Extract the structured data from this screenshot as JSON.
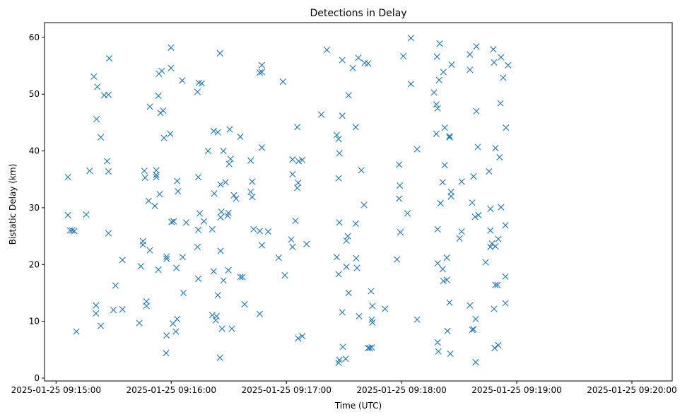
{
  "chart_data": {
    "type": "scatter",
    "title": "Detections in Delay",
    "xlabel": "Time (UTC)",
    "ylabel": "Bistatic Delay (km)",
    "marker": "x",
    "color": "#1f77b4",
    "grid": false,
    "legend": null,
    "xlim": [
      "2025-01-25 09:14:54",
      "2025-01-25 09:20:21"
    ],
    "ylim": [
      -0.5,
      62.6
    ],
    "x_ticks": [
      "2025-01-25 09:15:00",
      "2025-01-25 09:16:00",
      "2025-01-25 09:17:00",
      "2025-01-25 09:18:00",
      "2025-01-25 09:19:00",
      "2025-01-25 09:20:00"
    ],
    "y_ticks": [
      0,
      10,
      20,
      30,
      40,
      50,
      60
    ],
    "points": [
      [
        "2025-01-25 09:15:06.2",
        35.4
      ],
      [
        "2025-01-25 09:15:06.2",
        28.7
      ],
      [
        "2025-01-25 09:15:07.3",
        26.0
      ],
      [
        "2025-01-25 09:15:08.4",
        26.0
      ],
      [
        "2025-01-25 09:15:09.5",
        25.9
      ],
      [
        "2025-01-25 09:15:10.6",
        8.2
      ],
      [
        "2025-01-25 09:15:15.7",
        28.8
      ],
      [
        "2025-01-25 09:15:17.5",
        36.5
      ],
      [
        "2025-01-25 09:15:19.7",
        53.1
      ],
      [
        "2025-01-25 09:15:21.1",
        45.6
      ],
      [
        "2025-01-25 09:15:21.5",
        51.3
      ],
      [
        "2025-01-25 09:15:20.8",
        12.8
      ],
      [
        "2025-01-25 09:15:20.8",
        11.4
      ],
      [
        "2025-01-25 09:15:23.3",
        42.4
      ],
      [
        "2025-01-25 09:15:23.3",
        9.2
      ],
      [
        "2025-01-25 09:15:25.1",
        49.8
      ],
      [
        "2025-01-25 09:15:27.3",
        49.9
      ],
      [
        "2025-01-25 09:15:27.7",
        56.3
      ],
      [
        "2025-01-25 09:15:26.6",
        38.2
      ],
      [
        "2025-01-25 09:15:27.3",
        36.4
      ],
      [
        "2025-01-25 09:15:27.3",
        25.5
      ],
      [
        "2025-01-25 09:15:29.9",
        12.0
      ],
      [
        "2025-01-25 09:15:31.0",
        16.3
      ],
      [
        "2025-01-25 09:15:34.6",
        20.8
      ],
      [
        "2025-01-25 09:15:34.6",
        12.1
      ],
      [
        "2025-01-25 09:15:43.4",
        9.7
      ],
      [
        "2025-01-25 09:15:44.2",
        19.7
      ],
      [
        "2025-01-25 09:15:45.3",
        24.1
      ],
      [
        "2025-01-25 09:15:45.3",
        23.5
      ],
      [
        "2025-01-25 09:15:46.0",
        36.5
      ],
      [
        "2025-01-25 09:15:46.4",
        35.3
      ],
      [
        "2025-01-25 09:15:47.1",
        13.5
      ],
      [
        "2025-01-25 09:15:47.1",
        12.7
      ],
      [
        "2025-01-25 09:15:48.2",
        31.2
      ],
      [
        "2025-01-25 09:15:48.9",
        22.5
      ],
      [
        "2025-01-25 09:15:48.9",
        47.8
      ],
      [
        "2025-01-25 09:15:51.5",
        30.3
      ],
      [
        "2025-01-25 09:15:52.2",
        36.6
      ],
      [
        "2025-01-25 09:15:52.2",
        35.8
      ],
      [
        "2025-01-25 09:15:52.2",
        35.4
      ],
      [
        "2025-01-25 09:15:53.3",
        49.7
      ],
      [
        "2025-01-25 09:15:53.3",
        19.1
      ],
      [
        "2025-01-25 09:15:53.6",
        53.6
      ],
      [
        "2025-01-25 09:15:54.0",
        32.4
      ],
      [
        "2025-01-25 09:15:54.4",
        46.7
      ],
      [
        "2025-01-25 09:15:55.1",
        54.1
      ],
      [
        "2025-01-25 09:15:55.8",
        47.1
      ],
      [
        "2025-01-25 09:15:56.2",
        42.3
      ],
      [
        "2025-01-25 09:15:57.6",
        21.4
      ],
      [
        "2025-01-25 09:15:57.6",
        21.0
      ],
      [
        "2025-01-25 09:15:57.6",
        7.5
      ],
      [
        "2025-01-25 09:15:57.3",
        4.4
      ],
      [
        "2025-01-25 09:15:59.5",
        43.0
      ],
      [
        "2025-01-25 09:15:59.9",
        58.2
      ],
      [
        "2025-01-25 09:15:59.9",
        54.6
      ],
      [
        "2025-01-25 09:16:00.2",
        27.5
      ],
      [
        "2025-01-25 09:16:01.3",
        27.6
      ],
      [
        "2025-01-25 09:16:00.9",
        9.6
      ],
      [
        "2025-01-25 09:16:02.7",
        19.4
      ],
      [
        "2025-01-25 09:16:02.4",
        8.2
      ],
      [
        "2025-01-25 09:16:03.1",
        10.4
      ],
      [
        "2025-01-25 09:16:03.1",
        34.7
      ],
      [
        "2025-01-25 09:16:03.5",
        32.9
      ],
      [
        "2025-01-25 09:16:05.7",
        52.4
      ],
      [
        "2025-01-25 09:16:06.0",
        21.3
      ],
      [
        "2025-01-25 09:16:06.4",
        15.0
      ],
      [
        "2025-01-25 09:16:07.8",
        27.4
      ],
      [
        "2025-01-25 09:16:13.7",
        50.4
      ],
      [
        "2025-01-25 09:16:14.1",
        35.4
      ],
      [
        "2025-01-25 09:16:14.1",
        26.1
      ],
      [
        "2025-01-25 09:16:13.7",
        23.1
      ],
      [
        "2025-01-25 09:16:14.1",
        17.5
      ],
      [
        "2025-01-25 09:16:14.4",
        52.0
      ],
      [
        "2025-01-25 09:16:14.8",
        29.0
      ],
      [
        "2025-01-25 09:16:15.9",
        51.9
      ],
      [
        "2025-01-25 09:16:17.0",
        27.6
      ],
      [
        "2025-01-25 09:16:19.2",
        40.0
      ],
      [
        "2025-01-25 09:16:21.4",
        26.2
      ],
      [
        "2025-01-25 09:16:21.4",
        11.1
      ],
      [
        "2025-01-25 09:16:22.1",
        43.5
      ],
      [
        "2025-01-25 09:16:22.1",
        18.8
      ],
      [
        "2025-01-25 09:16:22.4",
        32.5
      ],
      [
        "2025-01-25 09:16:23.2",
        10.2
      ],
      [
        "2025-01-25 09:16:23.6",
        10.9
      ],
      [
        "2025-01-25 09:16:24.3",
        43.3
      ],
      [
        "2025-01-25 09:16:24.3",
        14.6
      ],
      [
        "2025-01-25 09:16:25.4",
        57.2
      ],
      [
        "2025-01-25 09:16:25.4",
        3.6
      ],
      [
        "2025-01-25 09:16:25.7",
        28.3
      ],
      [
        "2025-01-25 09:16:26.1",
        29.3
      ],
      [
        "2025-01-25 09:16:25.7",
        22.4
      ],
      [
        "2025-01-25 09:16:25.7",
        34.1
      ],
      [
        "2025-01-25 09:16:26.5",
        8.7
      ],
      [
        "2025-01-25 09:16:27.2",
        17.2
      ],
      [
        "2025-01-25 09:16:27.2",
        40.0
      ],
      [
        "2025-01-25 09:16:28.3",
        34.5
      ],
      [
        "2025-01-25 09:16:29.4",
        28.6
      ],
      [
        "2025-01-25 09:16:29.8",
        29.1
      ],
      [
        "2025-01-25 09:16:29.8",
        19.0
      ],
      [
        "2025-01-25 09:16:30.2",
        37.7
      ],
      [
        "2025-01-25 09:16:30.5",
        43.8
      ],
      [
        "2025-01-25 09:16:30.9",
        38.6
      ],
      [
        "2025-01-25 09:16:31.6",
        8.7
      ],
      [
        "2025-01-25 09:16:32.7",
        32.2
      ],
      [
        "2025-01-25 09:16:33.8",
        31.6
      ],
      [
        "2025-01-25 09:16:36.0",
        42.5
      ],
      [
        "2025-01-25 09:16:36.0",
        17.8
      ],
      [
        "2025-01-25 09:16:37.1",
        17.8
      ],
      [
        "2025-01-25 09:16:38.2",
        13.0
      ],
      [
        "2025-01-25 09:16:41.4",
        38.3
      ],
      [
        "2025-01-25 09:16:41.4",
        32.8
      ],
      [
        "2025-01-25 09:16:42.2",
        34.6
      ],
      [
        "2025-01-25 09:16:42.2",
        31.9
      ],
      [
        "2025-01-25 09:16:42.9",
        26.2
      ],
      [
        "2025-01-25 09:16:46.1",
        53.8
      ],
      [
        "2025-01-25 09:16:46.1",
        25.9
      ],
      [
        "2025-01-25 09:16:46.1",
        11.3
      ],
      [
        "2025-01-25 09:16:47.2",
        53.9
      ],
      [
        "2025-01-25 09:16:47.2",
        55.1
      ],
      [
        "2025-01-25 09:16:47.2",
        40.6
      ],
      [
        "2025-01-25 09:16:47.2",
        23.4
      ],
      [
        "2025-01-25 09:16:50.5",
        25.8
      ],
      [
        "2025-01-25 09:16:56.0",
        21.2
      ],
      [
        "2025-01-25 09:16:58.2",
        52.2
      ],
      [
        "2025-01-25 09:16:59.2",
        18.1
      ],
      [
        "2025-01-25 09:17:02.5",
        24.4
      ],
      [
        "2025-01-25 09:17:03.2",
        38.5
      ],
      [
        "2025-01-25 09:17:03.2",
        35.9
      ],
      [
        "2025-01-25 09:17:03.2",
        23.1
      ],
      [
        "2025-01-25 09:17:04.7",
        27.7
      ],
      [
        "2025-01-25 09:17:05.7",
        44.2
      ],
      [
        "2025-01-25 09:17:05.7",
        33.5
      ],
      [
        "2025-01-25 09:17:06.1",
        34.4
      ],
      [
        "2025-01-25 09:17:06.4",
        38.2
      ],
      [
        "2025-01-25 09:17:06.1",
        7.0
      ],
      [
        "2025-01-25 09:17:08.3",
        38.4
      ],
      [
        "2025-01-25 09:17:08.3",
        7.4
      ],
      [
        "2025-01-25 09:17:10.5",
        23.6
      ],
      [
        "2025-01-25 09:17:18.2",
        46.4
      ],
      [
        "2025-01-25 09:17:21.1",
        57.8
      ],
      [
        "2025-01-25 09:17:26.2",
        21.3
      ],
      [
        "2025-01-25 09:17:26.2",
        42.8
      ],
      [
        "2025-01-25 09:17:27.2",
        42.1
      ],
      [
        "2025-01-25 09:17:27.2",
        35.2
      ],
      [
        "2025-01-25 09:17:27.2",
        18.3
      ],
      [
        "2025-01-25 09:17:27.6",
        39.6
      ],
      [
        "2025-01-25 09:17:27.6",
        27.4
      ],
      [
        "2025-01-25 09:17:27.2",
        2.7
      ],
      [
        "2025-01-25 09:17:27.6",
        3.2
      ],
      [
        "2025-01-25 09:17:29.1",
        56.0
      ],
      [
        "2025-01-25 09:17:29.1",
        46.2
      ],
      [
        "2025-01-25 09:17:29.1",
        11.6
      ],
      [
        "2025-01-25 09:17:29.4",
        5.5
      ],
      [
        "2025-01-25 09:17:30.9",
        3.4
      ],
      [
        "2025-01-25 09:17:31.3",
        24.2
      ],
      [
        "2025-01-25 09:17:31.3",
        19.6
      ],
      [
        "2025-01-25 09:17:32.0",
        25.0
      ],
      [
        "2025-01-25 09:17:32.4",
        49.8
      ],
      [
        "2025-01-25 09:17:32.4",
        15.0
      ],
      [
        "2025-01-25 09:17:34.6",
        54.6
      ],
      [
        "2025-01-25 09:17:36.1",
        44.2
      ],
      [
        "2025-01-25 09:17:36.1",
        27.2
      ],
      [
        "2025-01-25 09:17:36.4",
        21.1
      ],
      [
        "2025-01-25 09:17:36.8",
        19.4
      ],
      [
        "2025-01-25 09:17:37.5",
        56.4
      ],
      [
        "2025-01-25 09:17:37.9",
        10.9
      ],
      [
        "2025-01-25 09:17:39.0",
        36.6
      ],
      [
        "2025-01-25 09:17:40.5",
        30.5
      ],
      [
        "2025-01-25 09:17:40.8",
        55.5
      ],
      [
        "2025-01-25 09:17:42.6",
        55.4
      ],
      [
        "2025-01-25 09:17:42.6",
        5.3
      ],
      [
        "2025-01-25 09:17:43.4",
        5.3
      ],
      [
        "2025-01-25 09:17:44.5",
        5.4
      ],
      [
        "2025-01-25 09:17:44.1",
        15.3
      ],
      [
        "2025-01-25 09:17:44.8",
        12.7
      ],
      [
        "2025-01-25 09:17:44.5",
        10.3
      ],
      [
        "2025-01-25 09:17:44.8",
        9.8
      ],
      [
        "2025-01-25 09:17:51.4",
        12.2
      ],
      [
        "2025-01-25 09:17:57.6",
        20.9
      ],
      [
        "2025-01-25 09:17:58.7",
        37.6
      ],
      [
        "2025-01-25 09:17:58.7",
        31.6
      ],
      [
        "2025-01-25 09:17:59.1",
        33.9
      ],
      [
        "2025-01-25 09:17:59.4",
        25.7
      ],
      [
        "2025-01-25 09:18:00.9",
        56.7
      ],
      [
        "2025-01-25 09:18:03.1",
        29.0
      ],
      [
        "2025-01-25 09:18:04.9",
        51.8
      ],
      [
        "2025-01-25 09:18:04.9",
        59.9
      ],
      [
        "2025-01-25 09:18:08.1",
        40.3
      ],
      [
        "2025-01-25 09:18:08.1",
        10.3
      ],
      [
        "2025-01-25 09:18:16.9",
        50.3
      ],
      [
        "2025-01-25 09:18:18.1",
        48.2
      ],
      [
        "2025-01-25 09:18:18.1",
        43.0
      ],
      [
        "2025-01-25 09:18:18.5",
        56.6
      ],
      [
        "2025-01-25 09:18:18.8",
        47.5
      ],
      [
        "2025-01-25 09:18:18.8",
        26.2
      ],
      [
        "2025-01-25 09:18:18.8",
        20.2
      ],
      [
        "2025-01-25 09:18:18.8",
        6.3
      ],
      [
        "2025-01-25 09:18:19.2",
        4.7
      ],
      [
        "2025-01-25 09:18:19.6",
        52.5
      ],
      [
        "2025-01-25 09:18:19.9",
        58.9
      ],
      [
        "2025-01-25 09:18:20.3",
        30.8
      ],
      [
        "2025-01-25 09:18:21.4",
        19.2
      ],
      [
        "2025-01-25 09:18:21.8",
        53.9
      ],
      [
        "2025-01-25 09:18:21.4",
        34.5
      ],
      [
        "2025-01-25 09:18:21.8",
        17.1
      ],
      [
        "2025-01-25 09:18:22.5",
        44.1
      ],
      [
        "2025-01-25 09:18:22.5",
        37.5
      ],
      [
        "2025-01-25 09:18:23.6",
        17.3
      ],
      [
        "2025-01-25 09:18:23.6",
        21.2
      ],
      [
        "2025-01-25 09:18:23.9",
        8.3
      ],
      [
        "2025-01-25 09:18:25.0",
        42.6
      ],
      [
        "2025-01-25 09:18:25.0",
        42.4
      ],
      [
        "2025-01-25 09:18:25.0",
        13.3
      ],
      [
        "2025-01-25 09:18:25.8",
        32.8
      ],
      [
        "2025-01-25 09:18:25.8",
        32.0
      ],
      [
        "2025-01-25 09:18:25.4",
        4.3
      ],
      [
        "2025-01-25 09:18:26.1",
        55.2
      ],
      [
        "2025-01-25 09:18:30.2",
        24.6
      ],
      [
        "2025-01-25 09:18:31.3",
        34.6
      ],
      [
        "2025-01-25 09:18:31.3",
        25.8
      ],
      [
        "2025-01-25 09:18:35.6",
        54.3
      ],
      [
        "2025-01-25 09:18:35.6",
        57.0
      ],
      [
        "2025-01-25 09:18:35.6",
        12.8
      ],
      [
        "2025-01-25 09:18:36.8",
        30.9
      ],
      [
        "2025-01-25 09:18:36.8",
        8.5
      ],
      [
        "2025-01-25 09:18:37.5",
        8.6
      ],
      [
        "2025-01-25 09:18:37.5",
        35.5
      ],
      [
        "2025-01-25 09:18:38.3",
        28.4
      ],
      [
        "2025-01-25 09:18:38.6",
        10.4
      ],
      [
        "2025-01-25 09:18:38.6",
        2.8
      ],
      [
        "2025-01-25 09:18:39.0",
        58.4
      ],
      [
        "2025-01-25 09:18:39.0",
        47.0
      ],
      [
        "2025-01-25 09:18:39.7",
        40.7
      ],
      [
        "2025-01-25 09:18:40.1",
        28.7
      ],
      [
        "2025-01-25 09:18:43.8",
        20.4
      ],
      [
        "2025-01-25 09:18:45.6",
        36.4
      ],
      [
        "2025-01-25 09:18:46.3",
        29.8
      ],
      [
        "2025-01-25 09:18:46.3",
        26.0
      ],
      [
        "2025-01-25 09:18:46.3",
        23.1
      ],
      [
        "2025-01-25 09:18:47.1",
        23.7
      ],
      [
        "2025-01-25 09:18:47.8",
        57.9
      ],
      [
        "2025-01-25 09:18:48.2",
        12.2
      ],
      [
        "2025-01-25 09:18:48.2",
        55.6
      ],
      [
        "2025-01-25 09:18:48.9",
        40.5
      ],
      [
        "2025-01-25 09:18:48.9",
        23.2
      ],
      [
        "2025-01-25 09:18:48.9",
        16.4
      ],
      [
        "2025-01-25 09:18:48.5",
        5.3
      ],
      [
        "2025-01-25 09:18:50.0",
        16.4
      ],
      [
        "2025-01-25 09:18:50.4",
        24.5
      ],
      [
        "2025-01-25 09:18:50.4",
        5.8
      ],
      [
        "2025-01-25 09:18:51.1",
        38.9
      ],
      [
        "2025-01-25 09:18:51.5",
        48.4
      ],
      [
        "2025-01-25 09:18:51.8",
        30.1
      ],
      [
        "2025-01-25 09:18:51.8",
        56.5
      ],
      [
        "2025-01-25 09:18:52.9",
        52.9
      ],
      [
        "2025-01-25 09:18:54.1",
        26.9
      ],
      [
        "2025-01-25 09:18:54.1",
        17.9
      ],
      [
        "2025-01-25 09:18:54.1",
        13.2
      ],
      [
        "2025-01-25 09:18:54.4",
        44.1
      ],
      [
        "2025-01-25 09:18:55.5",
        55.1
      ]
    ]
  }
}
